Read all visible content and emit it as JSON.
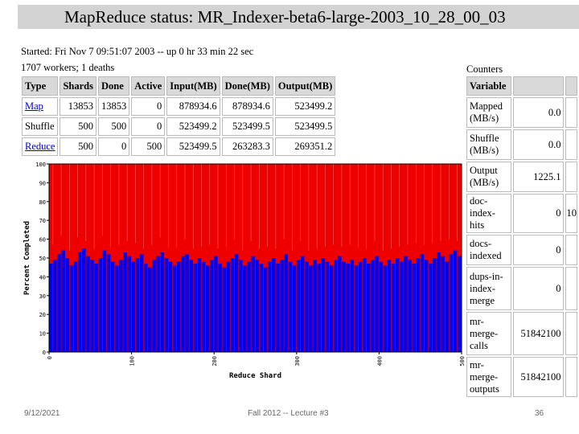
{
  "header": {
    "title": "MapReduce status: MR_Indexer-beta6-large-2003_10_28_00_03"
  },
  "status": {
    "started": "Started: Fri Nov 7 09:51:07 2003 -- up 0 hr 33 min 22 sec",
    "workers": "1707 workers; 1 deaths"
  },
  "jobs": {
    "headers": [
      "Type",
      "Shards",
      "Done",
      "Active",
      "Input(MB)",
      "Done(MB)",
      "Output(MB)"
    ],
    "rows": [
      {
        "type": "Map",
        "shards": "13853",
        "done": "13853",
        "active": "0",
        "input": "878934.6",
        "done_mb": "878934.6",
        "output": "523499.2",
        "link": true
      },
      {
        "type": "Shuffle",
        "shards": "500",
        "done": "500",
        "active": "0",
        "input": "523499.2",
        "done_mb": "523499.5",
        "output": "523499.5",
        "link": false
      },
      {
        "type": "Reduce",
        "shards": "500",
        "done": "0",
        "active": "500",
        "input": "523499.5",
        "done_mb": "263283.3",
        "output": "269351.2",
        "link": true
      }
    ]
  },
  "counters": {
    "label": "Counters",
    "header": "Variable",
    "rows": [
      {
        "name": "Mapped (MB/s)",
        "value": "0.0",
        "extra": ""
      },
      {
        "name": "Shuffle (MB/s)",
        "value": "0.0",
        "extra": ""
      },
      {
        "name": "Output (MB/s)",
        "value": "1225.1",
        "extra": ""
      },
      {
        "name": "doc-index-hits",
        "value": "0",
        "extra": "10"
      },
      {
        "name": "docs-indexed",
        "value": "0",
        "extra": ""
      },
      {
        "name": "dups-in-index-merge",
        "value": "0",
        "extra": ""
      },
      {
        "name": "mr-merge-calls",
        "value": "51842100",
        "extra": ""
      },
      {
        "name": "mr-merge-outputs",
        "value": "51842100",
        "extra": ""
      }
    ]
  },
  "chart_data": {
    "type": "bar",
    "xlabel": "Reduce Shard",
    "ylabel": "Percent Completed",
    "xlim": [
      0,
      500
    ],
    "ylim": [
      0,
      100
    ],
    "xticks": [
      0,
      100,
      200,
      300,
      400,
      500
    ],
    "yticks": [
      0,
      10,
      20,
      30,
      40,
      50,
      60,
      70,
      80,
      90,
      100
    ],
    "series_colors": {
      "completed": "#0000ee",
      "remaining": "#ee0000"
    },
    "completed_profile": [
      47,
      49,
      52,
      54,
      50,
      46,
      48,
      53,
      55,
      51,
      49,
      47,
      50,
      54,
      52,
      48,
      46,
      49,
      53,
      51,
      48,
      50,
      52,
      47,
      45,
      49,
      51,
      53,
      50,
      48,
      46,
      48,
      51,
      52,
      49,
      47,
      50,
      48,
      46,
      49,
      51,
      47,
      45,
      48,
      50,
      52,
      49,
      46,
      48,
      51,
      49,
      47,
      45,
      48,
      50,
      47,
      49,
      52,
      48,
      46,
      49,
      51,
      48,
      46,
      49,
      47,
      50,
      48,
      46,
      49,
      51,
      48,
      47,
      49,
      46,
      48,
      50,
      47,
      49,
      51,
      48,
      46,
      49,
      47,
      50,
      48,
      51,
      49,
      47,
      50,
      52,
      49,
      47,
      50,
      53,
      51,
      48,
      52,
      54,
      51
    ]
  },
  "footer": {
    "date": "9/12/2021",
    "course": "Fall 2012 -- Lecture #3",
    "page": "36"
  }
}
